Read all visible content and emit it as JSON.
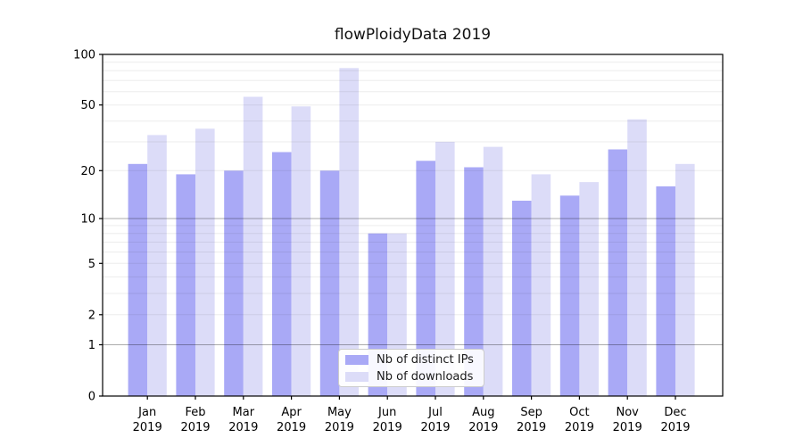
{
  "chart_data": {
    "type": "bar",
    "title": "flowPloidyData 2019",
    "categories": [
      "Jan",
      "Feb",
      "Mar",
      "Apr",
      "May",
      "Jun",
      "Jul",
      "Aug",
      "Sep",
      "Oct",
      "Nov",
      "Dec"
    ],
    "x_year": "2019",
    "series": [
      {
        "name": "Nb of distinct IPs",
        "color": "#a9a9f6",
        "values": [
          22,
          19,
          20,
          26,
          20,
          8,
          23,
          21,
          13,
          14,
          27,
          16
        ]
      },
      {
        "name": "Nb of downloads",
        "color": "#dcdcf8",
        "values": [
          33,
          36,
          56,
          49,
          83,
          8,
          30,
          28,
          19,
          17,
          41,
          22
        ]
      }
    ],
    "ylabel": "",
    "xlabel": "",
    "yscale": "log1p",
    "ylim": [
      0,
      100
    ],
    "yticks": [
      0,
      1,
      2,
      5,
      10,
      20,
      50,
      100
    ],
    "grid": "both",
    "grid_major_color": "#a6a6a6",
    "grid_minor_color": "#ebebeb",
    "axis_color": "#000000",
    "legend_position": "inside-bottom-center"
  }
}
